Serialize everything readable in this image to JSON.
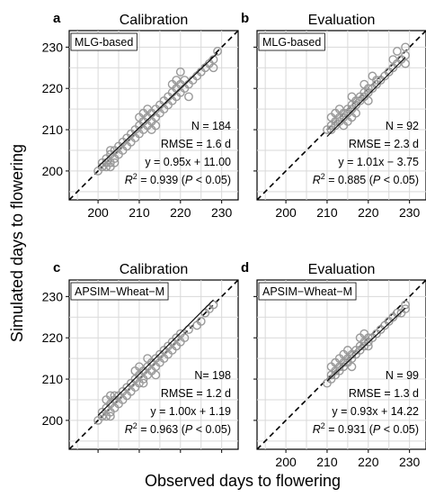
{
  "chart_data": [
    {
      "type": "scatter",
      "panel_letter": "a",
      "title": "Calibration",
      "model_label": "MLG-based",
      "xlim": [
        193,
        234
      ],
      "ylim": [
        193,
        234
      ],
      "xticks": [
        200,
        210,
        220,
        230
      ],
      "yticks": [
        200,
        210,
        220,
        230
      ],
      "grid": true,
      "one_to_one_line": true,
      "regression": {
        "slope": 0.95,
        "intercept": 11.0
      },
      "stats": {
        "n": "N = 184",
        "rmse": "RMSE = 1.6 d",
        "equation": "y = 0.95x + 11.00",
        "r2_symbol": "R",
        "r2_exp": "2",
        "r2_rest": " = 0.939 (",
        "p_symbol": "P",
        "p_rest": " < 0.05)"
      },
      "points": [
        [
          200,
          200
        ],
        [
          201,
          201
        ],
        [
          201,
          202
        ],
        [
          202,
          201
        ],
        [
          202,
          203
        ],
        [
          203,
          202
        ],
        [
          203,
          204
        ],
        [
          203,
          205
        ],
        [
          204,
          203
        ],
        [
          204,
          205
        ],
        [
          205,
          204
        ],
        [
          205,
          206
        ],
        [
          206,
          205
        ],
        [
          203,
          201
        ],
        [
          204,
          202
        ],
        [
          202,
          202
        ],
        [
          206,
          207
        ],
        [
          207,
          206
        ],
        [
          207,
          208
        ],
        [
          208,
          207
        ],
        [
          208,
          209
        ],
        [
          209,
          208
        ],
        [
          209,
          210
        ],
        [
          210,
          209
        ],
        [
          210,
          211
        ],
        [
          211,
          210
        ],
        [
          211,
          212
        ],
        [
          212,
          211
        ],
        [
          212,
          213
        ],
        [
          213,
          212
        ],
        [
          213,
          214
        ],
        [
          214,
          213
        ],
        [
          214,
          215
        ],
        [
          215,
          214
        ],
        [
          215,
          216
        ],
        [
          210,
          213
        ],
        [
          211,
          214
        ],
        [
          212,
          215
        ],
        [
          213,
          210
        ],
        [
          214,
          211
        ],
        [
          216,
          215
        ],
        [
          216,
          217
        ],
        [
          217,
          216
        ],
        [
          217,
          218
        ],
        [
          218,
          217
        ],
        [
          218,
          219
        ],
        [
          219,
          218
        ],
        [
          219,
          220
        ],
        [
          220,
          219
        ],
        [
          218,
          221
        ],
        [
          219,
          222
        ],
        [
          220,
          221
        ],
        [
          221,
          220
        ],
        [
          221,
          222
        ],
        [
          222,
          221
        ],
        [
          223,
          222
        ],
        [
          224,
          223
        ],
        [
          225,
          224
        ],
        [
          226,
          225
        ],
        [
          227,
          226
        ],
        [
          228,
          227
        ],
        [
          229,
          229
        ],
        [
          228,
          225
        ],
        [
          222,
          218
        ],
        [
          220,
          224
        ]
      ]
    },
    {
      "type": "scatter",
      "panel_letter": "b",
      "title": "Evaluation",
      "model_label": "MLG-based",
      "xlim": [
        193,
        234
      ],
      "ylim": [
        193,
        234
      ],
      "xticks": [
        200,
        210,
        220,
        230
      ],
      "yticks": [
        200,
        210,
        220,
        230
      ],
      "grid": true,
      "one_to_one_line": true,
      "regression": {
        "slope": 1.01,
        "intercept": -3.75
      },
      "stats": {
        "n": "N = 92",
        "rmse": "RMSE = 2.3 d",
        "equation": "y = 1.01x − 3.75",
        "r2_symbol": "R",
        "r2_exp": "2",
        "r2_rest": " = 0.885 (",
        "p_symbol": "P",
        "p_rest": " < 0.05)"
      },
      "points": [
        [
          210,
          210
        ],
        [
          211,
          210
        ],
        [
          211,
          211
        ],
        [
          212,
          211
        ],
        [
          212,
          212
        ],
        [
          213,
          212
        ],
        [
          213,
          213
        ],
        [
          214,
          213
        ],
        [
          214,
          214
        ],
        [
          215,
          214
        ],
        [
          215,
          215
        ],
        [
          216,
          215
        ],
        [
          216,
          216
        ],
        [
          217,
          216
        ],
        [
          217,
          217
        ],
        [
          218,
          217
        ],
        [
          218,
          218
        ],
        [
          219,
          218
        ],
        [
          219,
          219
        ],
        [
          220,
          219
        ],
        [
          220,
          220
        ],
        [
          221,
          220
        ],
        [
          222,
          221
        ],
        [
          222,
          222
        ],
        [
          223,
          222
        ],
        [
          224,
          223
        ],
        [
          225,
          224
        ],
        [
          226,
          225
        ],
        [
          226,
          227
        ],
        [
          227,
          226
        ],
        [
          228,
          227
        ],
        [
          229,
          228
        ],
        [
          229,
          230
        ],
        [
          229,
          226
        ],
        [
          227,
          229
        ],
        [
          212,
          214
        ],
        [
          213,
          215
        ],
        [
          214,
          211
        ],
        [
          215,
          212
        ],
        [
          216,
          218
        ],
        [
          217,
          214
        ],
        [
          219,
          221
        ],
        [
          220,
          217
        ],
        [
          221,
          223
        ],
        [
          211,
          213
        ],
        [
          216,
          213
        ]
      ]
    },
    {
      "type": "scatter",
      "panel_letter": "c",
      "title": "Calibration",
      "model_label": "APSIM−Wheat−M",
      "xlim": [
        193,
        234
      ],
      "ylim": [
        193,
        234
      ],
      "xticks": [
        200,
        210,
        220,
        230
      ],
      "yticks": [
        200,
        210,
        220,
        230
      ],
      "grid": true,
      "one_to_one_line": true,
      "regression": {
        "slope": 1.0,
        "intercept": 1.19
      },
      "stats": {
        "n": "N= 198",
        "rmse": "RMSE = 1.2 d",
        "equation": "y = 1.00x + 1.19",
        "r2_symbol": "R",
        "r2_exp": "2",
        "r2_rest": " = 0.963 (",
        "p_symbol": "P",
        "p_rest": " < 0.05)"
      },
      "points": [
        [
          200,
          200
        ],
        [
          201,
          201
        ],
        [
          201,
          202
        ],
        [
          202,
          201
        ],
        [
          202,
          203
        ],
        [
          203,
          202
        ],
        [
          203,
          204
        ],
        [
          204,
          203
        ],
        [
          204,
          205
        ],
        [
          205,
          204
        ],
        [
          205,
          206
        ],
        [
          202,
          205
        ],
        [
          203,
          206
        ],
        [
          204,
          206
        ],
        [
          206,
          205
        ],
        [
          206,
          207
        ],
        [
          207,
          206
        ],
        [
          207,
          208
        ],
        [
          208,
          207
        ],
        [
          208,
          209
        ],
        [
          209,
          208
        ],
        [
          209,
          210
        ],
        [
          210,
          209
        ],
        [
          210,
          211
        ],
        [
          211,
          210
        ],
        [
          211,
          212
        ],
        [
          212,
          211
        ],
        [
          212,
          213
        ],
        [
          213,
          212
        ],
        [
          213,
          214
        ],
        [
          214,
          213
        ],
        [
          214,
          215
        ],
        [
          215,
          214
        ],
        [
          215,
          216
        ],
        [
          216,
          215
        ],
        [
          216,
          217
        ],
        [
          217,
          216
        ],
        [
          217,
          218
        ],
        [
          218,
          217
        ],
        [
          218,
          219
        ],
        [
          219,
          218
        ],
        [
          219,
          220
        ],
        [
          220,
          219
        ],
        [
          220,
          221
        ],
        [
          221,
          220
        ],
        [
          222,
          222
        ],
        [
          224,
          223
        ],
        [
          225,
          224
        ],
        [
          226,
          226
        ],
        [
          227,
          227
        ],
        [
          228,
          228
        ],
        [
          210,
          213
        ],
        [
          212,
          215
        ],
        [
          214,
          211
        ],
        [
          203,
          201
        ],
        [
          209,
          212
        ],
        [
          211,
          209
        ]
      ]
    },
    {
      "type": "scatter",
      "panel_letter": "d",
      "title": "Evaluation",
      "model_label": "APSIM−Wheat−M",
      "xlim": [
        193,
        234
      ],
      "ylim": [
        193,
        234
      ],
      "xticks": [
        200,
        210,
        220,
        230
      ],
      "yticks": [
        200,
        210,
        220,
        230
      ],
      "grid": true,
      "one_to_one_line": true,
      "regression": {
        "slope": 0.93,
        "intercept": 14.22
      },
      "stats": {
        "n": "N = 99",
        "rmse": "RMSE = 1.3 d",
        "equation": "y = 0.93x + 14.22",
        "r2_symbol": "R",
        "r2_exp": "2",
        "r2_rest": " = 0.931 (",
        "p_symbol": "P",
        "p_rest": " < 0.05)"
      },
      "points": [
        [
          210,
          209
        ],
        [
          211,
          210
        ],
        [
          211,
          211
        ],
        [
          212,
          211
        ],
        [
          212,
          212
        ],
        [
          213,
          212
        ],
        [
          213,
          213
        ],
        [
          214,
          213
        ],
        [
          214,
          214
        ],
        [
          215,
          214
        ],
        [
          215,
          215
        ],
        [
          216,
          215
        ],
        [
          216,
          216
        ],
        [
          217,
          216
        ],
        [
          217,
          217
        ],
        [
          218,
          217
        ],
        [
          218,
          218
        ],
        [
          219,
          218
        ],
        [
          219,
          219
        ],
        [
          220,
          219
        ],
        [
          220,
          220
        ],
        [
          221,
          220
        ],
        [
          222,
          221
        ],
        [
          223,
          222
        ],
        [
          224,
          223
        ],
        [
          225,
          224
        ],
        [
          226,
          225
        ],
        [
          227,
          226
        ],
        [
          228,
          226
        ],
        [
          229,
          227
        ],
        [
          229,
          228
        ],
        [
          213,
          215
        ],
        [
          215,
          217
        ],
        [
          212,
          214
        ],
        [
          214,
          216
        ],
        [
          216,
          213
        ],
        [
          218,
          220
        ],
        [
          219,
          221
        ],
        [
          211,
          213
        ],
        [
          220,
          218
        ]
      ]
    }
  ],
  "axes": {
    "xlabel": "Observed days to flowering",
    "ylabel": "Simulated days to flowering"
  }
}
